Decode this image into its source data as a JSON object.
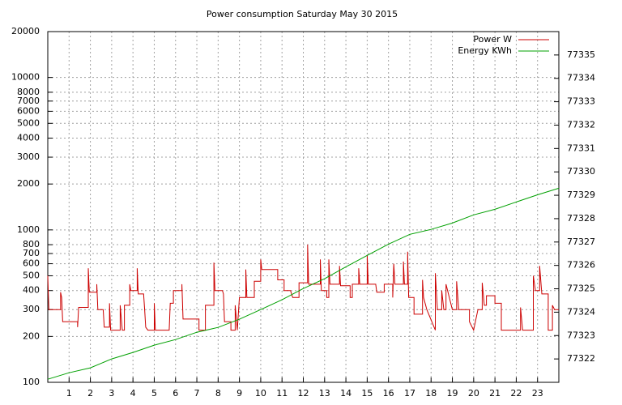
{
  "chart_data": {
    "type": "line",
    "title": "Power consumption Saturday May 30 2015",
    "xlim": [
      0,
      24
    ],
    "xticks": [
      1,
      2,
      3,
      4,
      5,
      6,
      7,
      8,
      9,
      10,
      11,
      12,
      13,
      14,
      15,
      16,
      17,
      18,
      19,
      20,
      21,
      22,
      23
    ],
    "ylim": [
      100,
      20000
    ],
    "ylog": true,
    "yticks": [
      100,
      200,
      300,
      400,
      500,
      600,
      700,
      800,
      1000,
      2000,
      3000,
      4000,
      5000,
      6000,
      7000,
      8000,
      10000,
      20000
    ],
    "y2lim": [
      77321,
      77336
    ],
    "y2ticks": [
      77322,
      77323,
      77324,
      77325,
      77326,
      77327,
      77328,
      77329,
      77330,
      77331,
      77332,
      77333,
      77334,
      77335
    ],
    "grid": true,
    "legend": "top-right",
    "series": [
      {
        "name": "Power W",
        "color": "#cc0000",
        "axis": "y",
        "x": [
          0,
          0.05,
          0.6,
          0.6,
          0.65,
          0.7,
          1.4,
          1.4,
          1.45,
          1.9,
          1.9,
          1.95,
          2.3,
          2.3,
          2.35,
          2.6,
          2.65,
          2.9,
          2.9,
          2.95,
          3.4,
          3.4,
          3.5,
          3.6,
          3.6,
          3.85,
          3.85,
          3.9,
          4.2,
          4.2,
          4.25,
          4.5,
          4.55,
          4.6,
          4.7,
          5.0,
          5.0,
          5.05,
          5.7,
          5.75,
          5.9,
          5.9,
          6.3,
          6.3,
          6.35,
          7.1,
          7.1,
          7.4,
          7.4,
          7.55,
          7.8,
          7.8,
          7.85,
          8.2,
          8.25,
          8.3,
          8.6,
          8.6,
          8.8,
          8.8,
          8.9,
          9.0,
          9.3,
          9.3,
          9.35,
          9.7,
          9.7,
          10.0,
          10.0,
          10.05,
          10.8,
          10.8,
          11.1,
          11.1,
          11.4,
          11.5,
          11.8,
          11.8,
          12.2,
          12.2,
          12.25,
          12.8,
          12.8,
          12.85,
          13.1,
          13.1,
          13.2,
          13.2,
          13.25,
          13.7,
          13.7,
          13.75,
          14.2,
          14.2,
          14.3,
          14.3,
          14.6,
          14.6,
          14.65,
          15.0,
          15.0,
          15.05,
          15.4,
          15.45,
          15.8,
          15.8,
          16.2,
          16.2,
          16.25,
          16.3,
          16.7,
          16.7,
          16.75,
          16.9,
          16.9,
          16.95,
          17.2,
          17.2,
          17.6,
          17.6,
          17.65,
          17.8,
          18.2,
          18.2,
          18.3,
          18.5,
          18.5,
          18.6,
          18.7,
          18.7,
          19.0,
          19.2,
          19.2,
          19.3,
          19.8,
          19.8,
          20.0,
          20.2,
          20.4,
          20.4,
          20.5,
          20.6,
          20.6,
          21.0,
          21.0,
          21.3,
          21.3,
          22.2,
          22.2,
          22.3,
          22.8,
          22.8,
          22.9,
          23.1,
          23.1,
          23.2,
          23.5,
          23.5,
          23.7,
          23.7,
          23.8,
          24
        ],
        "values": [
          500,
          300,
          300,
          390,
          360,
          250,
          250,
          230,
          310,
          310,
          560,
          390,
          390,
          440,
          300,
          300,
          230,
          230,
          330,
          220,
          220,
          320,
          220,
          220,
          320,
          320,
          440,
          400,
          400,
          560,
          380,
          380,
          300,
          230,
          220,
          220,
          330,
          220,
          220,
          330,
          330,
          400,
          400,
          440,
          260,
          260,
          220,
          220,
          320,
          320,
          320,
          610,
          400,
          400,
          380,
          250,
          250,
          220,
          220,
          320,
          220,
          360,
          360,
          550,
          360,
          360,
          460,
          460,
          640,
          550,
          550,
          470,
          470,
          400,
          400,
          360,
          360,
          450,
          450,
          800,
          440,
          440,
          640,
          400,
          400,
          360,
          360,
          640,
          440,
          440,
          580,
          430,
          430,
          360,
          360,
          440,
          440,
          560,
          440,
          440,
          680,
          440,
          440,
          390,
          390,
          440,
          440,
          360,
          600,
          440,
          440,
          620,
          440,
          440,
          720,
          360,
          360,
          280,
          280,
          470,
          360,
          300,
          220,
          520,
          300,
          300,
          400,
          300,
          300,
          440,
          300,
          300,
          460,
          300,
          300,
          250,
          220,
          300,
          300,
          450,
          320,
          320,
          370,
          370,
          330,
          330,
          220,
          220,
          310,
          220,
          220,
          500,
          400,
          400,
          580,
          380,
          380,
          220,
          220,
          320,
          300,
          300
        ]
      },
      {
        "name": "Energy KWh",
        "color": "#00a000",
        "axis": "y2",
        "x": [
          0,
          1,
          2,
          3,
          4,
          5,
          6,
          7,
          8,
          9,
          10,
          11,
          12,
          13,
          14,
          15,
          16,
          17,
          18,
          19,
          20,
          21,
          22,
          23,
          24
        ],
        "values": [
          77321.13,
          77321.41,
          77321.62,
          77322.0,
          77322.28,
          77322.59,
          77322.83,
          77323.14,
          77323.35,
          77323.7,
          77324.11,
          77324.53,
          77325.01,
          77325.43,
          77325.94,
          77326.43,
          77326.91,
          77327.33,
          77327.54,
          77327.81,
          77328.16,
          77328.4,
          77328.71,
          77329.02,
          77329.3
        ]
      }
    ]
  }
}
